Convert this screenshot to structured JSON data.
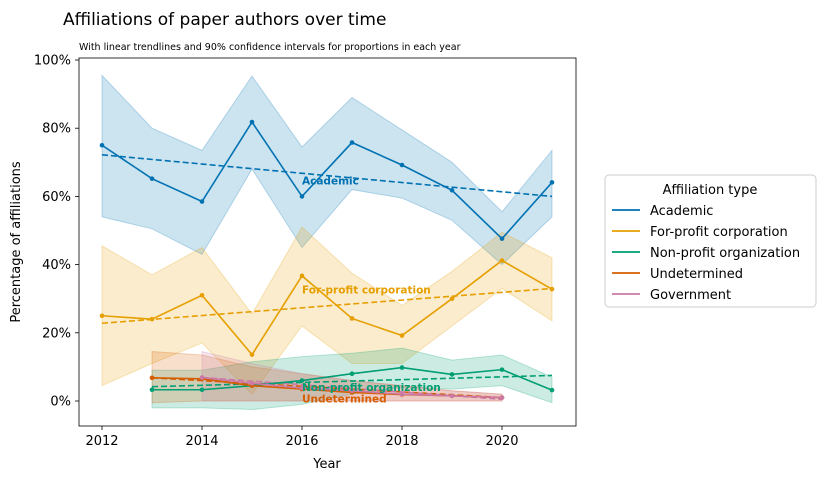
{
  "chart_data": {
    "type": "line",
    "title": "Affiliations of paper authors over time",
    "subtitle": "With linear trendlines and 90% confidence intervals for proportions in each year",
    "xlabel": "Year",
    "ylabel": "Percentage of affiliations",
    "xlim": [
      2011.5,
      2021.5
    ],
    "ylim": [
      -8,
      100
    ],
    "x_ticks": [
      2012,
      2014,
      2016,
      2018,
      2020
    ],
    "x_tick_labels": [
      "2012",
      "2014",
      "2016",
      "2018",
      "2020"
    ],
    "y_ticks": [
      0,
      20,
      40,
      60,
      80,
      100
    ],
    "y_tick_labels": [
      "0%",
      "20%",
      "40%",
      "60%",
      "80%",
      "100%"
    ],
    "legend_title": "Affiliation type",
    "legend_position": "right",
    "series": [
      {
        "name": "Academic",
        "color": "#0072b2",
        "x": [
          2012,
          2013,
          2014,
          2015,
          2016,
          2017,
          2018,
          2019,
          2020,
          2021
        ],
        "values": [
          75,
          65.2,
          58.5,
          81.8,
          60,
          75.8,
          69.2,
          61.8,
          47.6,
          64.1
        ],
        "ci_low": [
          54,
          50.5,
          43,
          68,
          45,
          62,
          59.5,
          53,
          40,
          54
        ],
        "ci_high": [
          95.5,
          80,
          73.5,
          95.3,
          74.5,
          89,
          79.5,
          70,
          55.5,
          73.5
        ],
        "trend": [
          72.2,
          60
        ],
        "annotation": "Academic",
        "annotation_at": [
          2016,
          63.5
        ]
      },
      {
        "name": "For-profit corporation",
        "color": "#e69f00",
        "x": [
          2012,
          2013,
          2014,
          2015,
          2016,
          2017,
          2018,
          2019,
          2020,
          2021
        ],
        "values": [
          25,
          24,
          31,
          13.6,
          36.7,
          24.2,
          19.2,
          30,
          41.2,
          32.8
        ],
        "ci_low": [
          4.5,
          11,
          17,
          2,
          22,
          11,
          11,
          22,
          33,
          23.5
        ],
        "ci_high": [
          45.5,
          37,
          45,
          25.5,
          51,
          37.5,
          28,
          38,
          49.5,
          42
        ],
        "trend": [
          22.8,
          33
        ],
        "annotation": "For-profit corporation",
        "annotation_at": [
          2016,
          31.5
        ]
      },
      {
        "name": "Non-profit organization",
        "color": "#009e73",
        "x": [
          2013,
          2014,
          2015,
          2016,
          2017,
          2018,
          2019,
          2020,
          2021
        ],
        "values": [
          3.3,
          3.3,
          4.5,
          6,
          8,
          9.8,
          7.8,
          9.2,
          3.2
        ],
        "ci_low": [
          -2,
          -2,
          -2.5,
          -1,
          2,
          4,
          3.5,
          4.5,
          -0.5
        ],
        "ci_high": [
          9,
          9,
          11.5,
          13,
          14,
          15.5,
          12,
          13.5,
          7
        ],
        "trend": [
          4.2,
          7.5
        ],
        "annotation": "Non-profit organization",
        "annotation_at": [
          2016,
          3
        ]
      },
      {
        "name": "Undetermined",
        "color": "#d55e00",
        "x": [
          2013,
          2014,
          2015,
          2016,
          2017,
          2018,
          2019,
          2020
        ],
        "values": [
          6.8,
          6.5,
          4.5,
          3.5,
          2.5,
          1.9,
          1.5,
          1.0
        ],
        "ci_low": [
          -0.5,
          0,
          0,
          0,
          0,
          0,
          0,
          0
        ],
        "ci_high": [
          14.5,
          13.5,
          10,
          8,
          6,
          4.5,
          3,
          2
        ],
        "trend": [
          6.8,
          1.0
        ],
        "annotation": "Undetermined",
        "annotation_at": [
          2016,
          -0.5
        ]
      },
      {
        "name": "Government",
        "color": "#cc79a7",
        "x": [
          2014,
          2015,
          2016,
          2017,
          2018,
          2019,
          2020
        ],
        "values": [
          6.9,
          5.2,
          3.8,
          3.0,
          2.0,
          1.5,
          1.0
        ],
        "ci_low": [
          0,
          0,
          0,
          0,
          0,
          0,
          0
        ],
        "ci_high": [
          14.5,
          11,
          8,
          6,
          4.5,
          3,
          2
        ],
        "trend": [
          6.9,
          0.5
        ],
        "annotation": "",
        "annotation_at": [
          2016,
          0
        ]
      }
    ]
  }
}
